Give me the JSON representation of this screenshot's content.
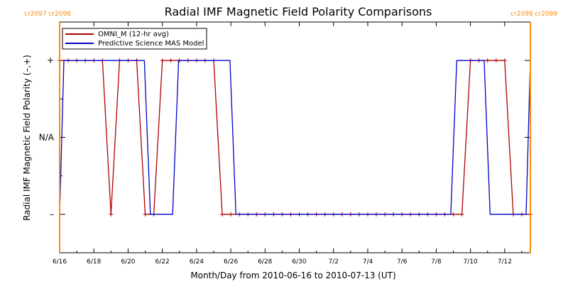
{
  "chart_data": {
    "type": "line",
    "title": "Radial IMF Magnetic Field Polarity Comparisons",
    "xlabel": "Month/Day from 2010-06-16 to 2010-07-13 (UT)",
    "ylabel": "Radial IMF Magnetic Field Polarity (–,+)",
    "x_unit": "days from 2010-06-16",
    "xlim": [
      0,
      27.5
    ],
    "ylim": [
      -1.5,
      1.5
    ],
    "x_ticks": [
      {
        "x": 0,
        "label": "6/16"
      },
      {
        "x": 2,
        "label": "6/18"
      },
      {
        "x": 4,
        "label": "6/20"
      },
      {
        "x": 6,
        "label": "6/22"
      },
      {
        "x": 8,
        "label": "6/24"
      },
      {
        "x": 10,
        "label": "6/26"
      },
      {
        "x": 12,
        "label": "6/28"
      },
      {
        "x": 14,
        "label": "6/30"
      },
      {
        "x": 16,
        "label": "7/2"
      },
      {
        "x": 18,
        "label": "7/4"
      },
      {
        "x": 20,
        "label": "7/6"
      },
      {
        "x": 22,
        "label": "7/8"
      },
      {
        "x": 24,
        "label": "7/10"
      },
      {
        "x": 26,
        "label": "7/12"
      }
    ],
    "y_ticks": [
      {
        "y": 1,
        "label": "+"
      },
      {
        "y": 0,
        "label": "N/A"
      },
      {
        "y": -1,
        "label": "–"
      }
    ],
    "legend": {
      "placement": "top-left",
      "entries": [
        "OMNI_M (12-hr avg)",
        "Predictive Science MAS Model"
      ]
    },
    "series": [
      {
        "name": "OMNI_M (12-hr avg)",
        "color": "#b00000",
        "marker": "plus",
        "x": [
          0,
          0.5,
          1,
          1.5,
          2,
          2.5,
          3,
          3.5,
          4,
          4.5,
          5,
          5.5,
          6,
          6.5,
          7,
          7.5,
          8,
          8.5,
          9,
          9.5,
          10,
          10.5,
          11,
          11.5,
          12,
          12.5,
          13,
          13.5,
          14,
          14.5,
          15,
          15.5,
          16,
          16.5,
          17,
          17.5,
          18,
          18.5,
          19,
          19.5,
          20,
          20.5,
          21,
          21.5,
          22,
          22.5,
          23,
          23.5,
          24,
          24.5,
          25,
          25.5,
          26,
          26.5,
          27,
          27.5
        ],
        "values": [
          1,
          1,
          1,
          1,
          1,
          1,
          -1,
          1,
          1,
          1,
          -1,
          -1,
          1,
          1,
          1,
          1,
          1,
          1,
          1,
          -1,
          -1,
          -1,
          -1,
          -1,
          -1,
          -1,
          -1,
          -1,
          -1,
          -1,
          -1,
          -1,
          -1,
          -1,
          -1,
          -1,
          -1,
          -1,
          -1,
          -1,
          -1,
          -1,
          -1,
          -1,
          -1,
          -1,
          -1,
          -1,
          1,
          1,
          1,
          1,
          1,
          -1,
          -1,
          -1
        ]
      },
      {
        "name": "Predictive Science MAS Model",
        "color": "#0000cc",
        "step": true,
        "x": [
          0,
          0.25,
          4.95,
          5.3,
          6.6,
          6.95,
          9.95,
          10.3,
          22.85,
          23.2,
          24.8,
          25.15,
          27.25,
          27.5
        ],
        "values": [
          -1,
          1,
          1,
          -1,
          -1,
          1,
          1,
          -1,
          -1,
          1,
          1,
          -1,
          -1,
          1
        ]
      }
    ],
    "markers": [
      {
        "x": 0,
        "labels": [
          "cr2097",
          "cr2098"
        ],
        "color": "#ff8c00",
        "placement": "top-left"
      },
      {
        "x": 27.5,
        "labels": [
          "cr2098",
          "cr2099"
        ],
        "color": "#ff8c00",
        "placement": "top-right"
      }
    ],
    "grid": false
  }
}
